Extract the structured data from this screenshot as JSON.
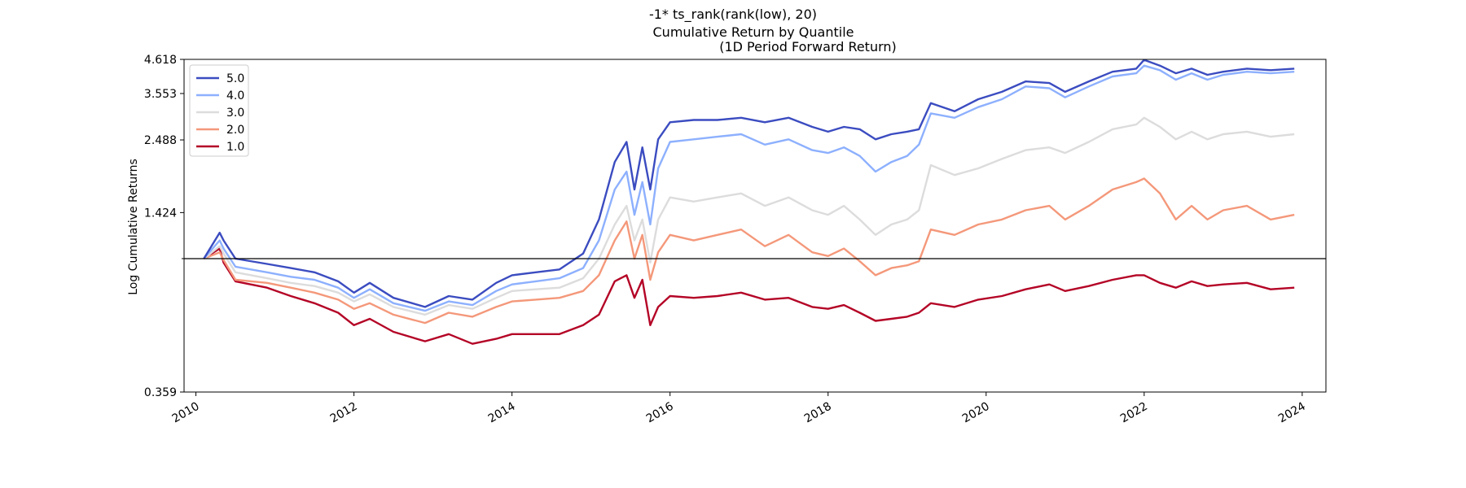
{
  "chart_data": {
    "type": "line",
    "title": "-1* ts_rank(rank(low), 20)",
    "subtitle": "Cumulative Return by Quantile",
    "subtitle2": "(1D Period Forward Return)",
    "xlabel": "",
    "ylabel": "Log Cumulative Returns",
    "xlim": [
      2009.85,
      2024.3
    ],
    "ylim": [
      0.359,
      4.618
    ],
    "y_scale": "log",
    "baseline": 1.0,
    "x_ticks": [
      "2010",
      "2012",
      "2014",
      "2016",
      "2018",
      "2020",
      "2022",
      "2024"
    ],
    "x_tick_values": [
      2010,
      2012,
      2014,
      2016,
      2018,
      2020,
      2022,
      2024
    ],
    "y_ticks": [
      "0.359",
      "1.424",
      "2.488",
      "3.553",
      "4.618"
    ],
    "y_tick_values": [
      0.359,
      1.424,
      2.488,
      3.553,
      4.618
    ],
    "legend_position": "top-left",
    "grid": false,
    "series": [
      {
        "name": "5.0",
        "color": "#3b4cc0",
        "x": [
          2010.1,
          2010.3,
          2010.35,
          2010.5,
          2010.9,
          2011.2,
          2011.5,
          2011.8,
          2012.0,
          2012.2,
          2012.5,
          2012.9,
          2013.2,
          2013.5,
          2013.8,
          2014.0,
          2014.3,
          2014.6,
          2014.9,
          2015.1,
          2015.3,
          2015.45,
          2015.55,
          2015.65,
          2015.75,
          2015.85,
          2016.0,
          2016.3,
          2016.6,
          2016.9,
          2017.2,
          2017.5,
          2017.8,
          2018.0,
          2018.2,
          2018.4,
          2018.6,
          2018.8,
          2019.0,
          2019.15,
          2019.3,
          2019.6,
          2019.9,
          2020.2,
          2020.5,
          2020.8,
          2021.0,
          2021.3,
          2021.6,
          2021.9,
          2022.0,
          2022.2,
          2022.4,
          2022.6,
          2022.8,
          2023.0,
          2023.3,
          2023.6,
          2023.9
        ],
        "values": [
          1.0,
          1.22,
          1.15,
          1.0,
          0.96,
          0.93,
          0.9,
          0.84,
          0.77,
          0.83,
          0.74,
          0.69,
          0.75,
          0.73,
          0.83,
          0.88,
          0.9,
          0.92,
          1.04,
          1.35,
          2.1,
          2.45,
          1.7,
          2.35,
          1.7,
          2.5,
          2.85,
          2.9,
          2.9,
          2.95,
          2.85,
          2.95,
          2.75,
          2.65,
          2.75,
          2.7,
          2.5,
          2.6,
          2.65,
          2.7,
          3.3,
          3.1,
          3.4,
          3.6,
          3.9,
          3.85,
          3.6,
          3.9,
          4.2,
          4.3,
          4.6,
          4.4,
          4.15,
          4.3,
          4.1,
          4.2,
          4.3,
          4.25,
          4.3
        ]
      },
      {
        "name": "4.0",
        "color": "#8db0fe",
        "x": [
          2010.1,
          2010.3,
          2010.35,
          2010.5,
          2010.9,
          2011.2,
          2011.5,
          2011.8,
          2012.0,
          2012.2,
          2012.5,
          2012.9,
          2013.2,
          2013.5,
          2013.8,
          2014.0,
          2014.3,
          2014.6,
          2014.9,
          2015.1,
          2015.3,
          2015.45,
          2015.55,
          2015.65,
          2015.75,
          2015.85,
          2016.0,
          2016.3,
          2016.6,
          2016.9,
          2017.2,
          2017.5,
          2017.8,
          2018.0,
          2018.2,
          2018.4,
          2018.6,
          2018.8,
          2019.0,
          2019.15,
          2019.3,
          2019.6,
          2019.9,
          2020.2,
          2020.5,
          2020.8,
          2021.0,
          2021.3,
          2021.6,
          2021.9,
          2022.0,
          2022.2,
          2022.4,
          2022.6,
          2022.8,
          2023.0,
          2023.3,
          2023.6,
          2023.9
        ],
        "values": [
          1.0,
          1.15,
          1.08,
          0.94,
          0.9,
          0.87,
          0.85,
          0.8,
          0.74,
          0.79,
          0.71,
          0.67,
          0.72,
          0.7,
          0.78,
          0.82,
          0.84,
          0.86,
          0.93,
          1.15,
          1.7,
          1.95,
          1.4,
          1.8,
          1.3,
          2.0,
          2.45,
          2.5,
          2.55,
          2.6,
          2.4,
          2.5,
          2.3,
          2.25,
          2.35,
          2.2,
          1.95,
          2.1,
          2.2,
          2.4,
          3.05,
          2.95,
          3.2,
          3.4,
          3.75,
          3.7,
          3.45,
          3.75,
          4.05,
          4.15,
          4.4,
          4.25,
          3.95,
          4.15,
          3.95,
          4.1,
          4.2,
          4.15,
          4.2
        ]
      },
      {
        "name": "3.0",
        "color": "#dddcdc",
        "x": [
          2010.1,
          2010.3,
          2010.35,
          2010.5,
          2010.9,
          2011.2,
          2011.5,
          2011.8,
          2012.0,
          2012.2,
          2012.5,
          2012.9,
          2013.2,
          2013.5,
          2013.8,
          2014.0,
          2014.3,
          2014.6,
          2014.9,
          2015.1,
          2015.3,
          2015.45,
          2015.55,
          2015.65,
          2015.75,
          2015.85,
          2016.0,
          2016.3,
          2016.6,
          2016.9,
          2017.2,
          2017.5,
          2017.8,
          2018.0,
          2018.2,
          2018.4,
          2018.6,
          2018.8,
          2019.0,
          2019.15,
          2019.3,
          2019.6,
          2019.9,
          2020.2,
          2020.5,
          2020.8,
          2021.0,
          2021.3,
          2021.6,
          2021.9,
          2022.0,
          2022.2,
          2022.4,
          2022.6,
          2022.8,
          2023.0,
          2023.3,
          2023.6,
          2023.9
        ],
        "values": [
          1.0,
          1.1,
          1.04,
          0.9,
          0.86,
          0.83,
          0.81,
          0.77,
          0.72,
          0.76,
          0.69,
          0.65,
          0.7,
          0.68,
          0.74,
          0.78,
          0.79,
          0.8,
          0.86,
          1.0,
          1.3,
          1.5,
          1.15,
          1.35,
          0.97,
          1.35,
          1.6,
          1.55,
          1.6,
          1.65,
          1.5,
          1.6,
          1.45,
          1.4,
          1.5,
          1.35,
          1.2,
          1.3,
          1.35,
          1.45,
          2.05,
          1.9,
          2.0,
          2.15,
          2.3,
          2.35,
          2.25,
          2.45,
          2.7,
          2.8,
          2.95,
          2.75,
          2.5,
          2.65,
          2.5,
          2.6,
          2.65,
          2.55,
          2.6
        ]
      },
      {
        "name": "2.0",
        "color": "#f4987a",
        "x": [
          2010.1,
          2010.3,
          2010.35,
          2010.5,
          2010.9,
          2011.2,
          2011.5,
          2011.8,
          2012.0,
          2012.2,
          2012.5,
          2012.9,
          2013.2,
          2013.5,
          2013.8,
          2014.0,
          2014.3,
          2014.6,
          2014.9,
          2015.1,
          2015.3,
          2015.45,
          2015.55,
          2015.65,
          2015.75,
          2015.85,
          2016.0,
          2016.3,
          2016.6,
          2016.9,
          2017.2,
          2017.5,
          2017.8,
          2018.0,
          2018.2,
          2018.4,
          2018.6,
          2018.8,
          2019.0,
          2019.15,
          2019.3,
          2019.6,
          2019.9,
          2020.2,
          2020.5,
          2020.8,
          2021.0,
          2021.3,
          2021.6,
          2021.9,
          2022.0,
          2022.2,
          2022.4,
          2022.6,
          2022.8,
          2023.0,
          2023.3,
          2023.6,
          2023.9
        ],
        "values": [
          1.0,
          1.05,
          0.99,
          0.85,
          0.83,
          0.8,
          0.77,
          0.73,
          0.68,
          0.71,
          0.65,
          0.61,
          0.66,
          0.64,
          0.69,
          0.72,
          0.73,
          0.74,
          0.78,
          0.88,
          1.15,
          1.33,
          1.0,
          1.2,
          0.85,
          1.05,
          1.2,
          1.15,
          1.2,
          1.25,
          1.1,
          1.2,
          1.05,
          1.02,
          1.08,
          0.98,
          0.88,
          0.93,
          0.95,
          0.98,
          1.25,
          1.2,
          1.3,
          1.35,
          1.45,
          1.5,
          1.35,
          1.5,
          1.7,
          1.8,
          1.85,
          1.65,
          1.35,
          1.5,
          1.35,
          1.45,
          1.5,
          1.35,
          1.4
        ]
      },
      {
        "name": "1.0",
        "color": "#b40426",
        "x": [
          2010.1,
          2010.3,
          2010.35,
          2010.5,
          2010.9,
          2011.2,
          2011.5,
          2011.8,
          2012.0,
          2012.2,
          2012.5,
          2012.9,
          2013.2,
          2013.5,
          2013.8,
          2014.0,
          2014.3,
          2014.6,
          2014.9,
          2015.1,
          2015.3,
          2015.45,
          2015.55,
          2015.65,
          2015.75,
          2015.85,
          2016.0,
          2016.3,
          2016.6,
          2016.9,
          2017.2,
          2017.5,
          2017.8,
          2018.0,
          2018.2,
          2018.4,
          2018.6,
          2018.8,
          2019.0,
          2019.15,
          2019.3,
          2019.6,
          2019.9,
          2020.2,
          2020.5,
          2020.8,
          2021.0,
          2021.3,
          2021.6,
          2021.9,
          2022.0,
          2022.2,
          2022.4,
          2022.6,
          2022.8,
          2023.0,
          2023.3,
          2023.6,
          2023.9
        ],
        "values": [
          1.0,
          1.08,
          0.97,
          0.84,
          0.8,
          0.75,
          0.71,
          0.66,
          0.6,
          0.63,
          0.57,
          0.53,
          0.56,
          0.52,
          0.54,
          0.56,
          0.56,
          0.56,
          0.6,
          0.65,
          0.84,
          0.88,
          0.74,
          0.85,
          0.6,
          0.69,
          0.75,
          0.74,
          0.75,
          0.77,
          0.73,
          0.74,
          0.69,
          0.68,
          0.7,
          0.66,
          0.62,
          0.63,
          0.64,
          0.66,
          0.71,
          0.69,
          0.73,
          0.75,
          0.79,
          0.82,
          0.78,
          0.81,
          0.85,
          0.88,
          0.88,
          0.83,
          0.8,
          0.84,
          0.81,
          0.82,
          0.83,
          0.79,
          0.8
        ]
      }
    ]
  }
}
